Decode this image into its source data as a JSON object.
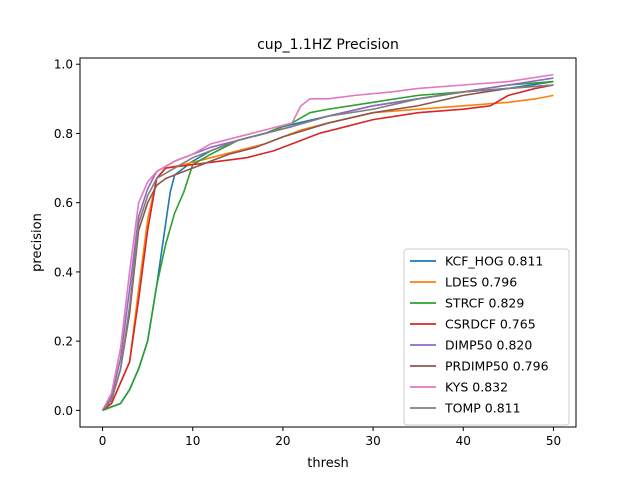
{
  "chart_data": {
    "type": "line",
    "title": "cup_1.1HZ Precision",
    "xlabel": "thresh",
    "ylabel": "precision",
    "xlim": [
      -2.5,
      52.5
    ],
    "ylim": [
      -0.048,
      1.018
    ],
    "x_ticks": [
      0,
      10,
      20,
      30,
      40,
      50
    ],
    "y_ticks": [
      0.0,
      0.2,
      0.4,
      0.6,
      0.8,
      1.0
    ],
    "x_tick_labels": [
      "0",
      "10",
      "20",
      "30",
      "40",
      "50"
    ],
    "y_tick_labels": [
      "0.0",
      "0.2",
      "0.4",
      "0.6",
      "0.8",
      "1.0"
    ],
    "grid": false,
    "legend_position": "lower-right",
    "series": [
      {
        "name": "KCF_HOG 0.811",
        "color": "#1f77b4",
        "points": [
          [
            0,
            0
          ],
          [
            1,
            0.01
          ],
          [
            2,
            0.02
          ],
          [
            3,
            0.06
          ],
          [
            4,
            0.12
          ],
          [
            5,
            0.2
          ],
          [
            6,
            0.36
          ],
          [
            6.5,
            0.45
          ],
          [
            7,
            0.54
          ],
          [
            7.5,
            0.63
          ],
          [
            8,
            0.68
          ],
          [
            9,
            0.7
          ],
          [
            10,
            0.72
          ],
          [
            12,
            0.75
          ],
          [
            15,
            0.78
          ],
          [
            18,
            0.8
          ],
          [
            20,
            0.82
          ],
          [
            25,
            0.85
          ],
          [
            30,
            0.88
          ],
          [
            35,
            0.9
          ],
          [
            40,
            0.92
          ],
          [
            45,
            0.93
          ],
          [
            50,
            0.95
          ]
        ]
      },
      {
        "name": "LDES 0.796",
        "color": "#ff7f0e",
        "points": [
          [
            0,
            0
          ],
          [
            1,
            0.02
          ],
          [
            2,
            0.08
          ],
          [
            3,
            0.14
          ],
          [
            4,
            0.35
          ],
          [
            5,
            0.55
          ],
          [
            6,
            0.67
          ],
          [
            7,
            0.7
          ],
          [
            9,
            0.71
          ],
          [
            12,
            0.73
          ],
          [
            15,
            0.75
          ],
          [
            18,
            0.77
          ],
          [
            20,
            0.79
          ],
          [
            22,
            0.81
          ],
          [
            25,
            0.83
          ],
          [
            30,
            0.86
          ],
          [
            35,
            0.87
          ],
          [
            40,
            0.88
          ],
          [
            45,
            0.89
          ],
          [
            48,
            0.9
          ],
          [
            50,
            0.91
          ]
        ]
      },
      {
        "name": "STRCF 0.829",
        "color": "#2ca02c",
        "points": [
          [
            0,
            0
          ],
          [
            1,
            0.01
          ],
          [
            2,
            0.02
          ],
          [
            3,
            0.06
          ],
          [
            4,
            0.12
          ],
          [
            5,
            0.2
          ],
          [
            6,
            0.36
          ],
          [
            7,
            0.48
          ],
          [
            8,
            0.57
          ],
          [
            9,
            0.63
          ],
          [
            10,
            0.71
          ],
          [
            12,
            0.74
          ],
          [
            15,
            0.78
          ],
          [
            18,
            0.8
          ],
          [
            21,
            0.83
          ],
          [
            23,
            0.86
          ],
          [
            25,
            0.87
          ],
          [
            30,
            0.89
          ],
          [
            35,
            0.91
          ],
          [
            40,
            0.92
          ],
          [
            45,
            0.94
          ],
          [
            50,
            0.95
          ]
        ]
      },
      {
        "name": "CSRDCF 0.765",
        "color": "#d62728",
        "points": [
          [
            0,
            0
          ],
          [
            1,
            0.02
          ],
          [
            2,
            0.08
          ],
          [
            3,
            0.14
          ],
          [
            4,
            0.32
          ],
          [
            5,
            0.52
          ],
          [
            6,
            0.67
          ],
          [
            7,
            0.7
          ],
          [
            10,
            0.71
          ],
          [
            13,
            0.72
          ],
          [
            16,
            0.73
          ],
          [
            19,
            0.75
          ],
          [
            21,
            0.77
          ],
          [
            24,
            0.8
          ],
          [
            27,
            0.82
          ],
          [
            30,
            0.84
          ],
          [
            35,
            0.86
          ],
          [
            40,
            0.87
          ],
          [
            43,
            0.88
          ],
          [
            45,
            0.91
          ],
          [
            48,
            0.93
          ],
          [
            50,
            0.94
          ]
        ]
      },
      {
        "name": "DIMP50 0.820",
        "color": "#9467bd",
        "points": [
          [
            0,
            0
          ],
          [
            1,
            0.04
          ],
          [
            2,
            0.15
          ],
          [
            3,
            0.35
          ],
          [
            4,
            0.56
          ],
          [
            5,
            0.64
          ],
          [
            6,
            0.69
          ],
          [
            8,
            0.72
          ],
          [
            10,
            0.74
          ],
          [
            12,
            0.76
          ],
          [
            15,
            0.78
          ],
          [
            18,
            0.8
          ],
          [
            21,
            0.82
          ],
          [
            25,
            0.85
          ],
          [
            30,
            0.88
          ],
          [
            35,
            0.9
          ],
          [
            40,
            0.92
          ],
          [
            45,
            0.94
          ],
          [
            50,
            0.96
          ]
        ]
      },
      {
        "name": "PRDIMP50 0.796",
        "color": "#8c564b",
        "points": [
          [
            0,
            0
          ],
          [
            1,
            0.03
          ],
          [
            2,
            0.12
          ],
          [
            3,
            0.28
          ],
          [
            4,
            0.52
          ],
          [
            5,
            0.6
          ],
          [
            6,
            0.65
          ],
          [
            7,
            0.67
          ],
          [
            9,
            0.69
          ],
          [
            11,
            0.71
          ],
          [
            14,
            0.74
          ],
          [
            17,
            0.76
          ],
          [
            20,
            0.79
          ],
          [
            25,
            0.83
          ],
          [
            30,
            0.86
          ],
          [
            35,
            0.88
          ],
          [
            40,
            0.91
          ],
          [
            45,
            0.93
          ],
          [
            50,
            0.94
          ]
        ]
      },
      {
        "name": "KYS 0.832",
        "color": "#e377c2",
        "points": [
          [
            0,
            0
          ],
          [
            1,
            0.05
          ],
          [
            2,
            0.18
          ],
          [
            3,
            0.4
          ],
          [
            4,
            0.6
          ],
          [
            5,
            0.66
          ],
          [
            6,
            0.69
          ],
          [
            8,
            0.72
          ],
          [
            10,
            0.74
          ],
          [
            12,
            0.77
          ],
          [
            15,
            0.79
          ],
          [
            18,
            0.81
          ],
          [
            21,
            0.83
          ],
          [
            22,
            0.88
          ],
          [
            23,
            0.9
          ],
          [
            25,
            0.9
          ],
          [
            28,
            0.91
          ],
          [
            32,
            0.92
          ],
          [
            35,
            0.93
          ],
          [
            40,
            0.94
          ],
          [
            45,
            0.95
          ],
          [
            50,
            0.97
          ]
        ]
      },
      {
        "name": "TOMP 0.811",
        "color": "#7f7f7f",
        "points": [
          [
            0,
            0
          ],
          [
            1,
            0.03
          ],
          [
            2,
            0.12
          ],
          [
            3,
            0.3
          ],
          [
            4,
            0.54
          ],
          [
            5,
            0.62
          ],
          [
            6,
            0.67
          ],
          [
            8,
            0.7
          ],
          [
            10,
            0.73
          ],
          [
            12,
            0.75
          ],
          [
            15,
            0.78
          ],
          [
            18,
            0.8
          ],
          [
            21,
            0.82
          ],
          [
            25,
            0.85
          ],
          [
            30,
            0.87
          ],
          [
            35,
            0.9
          ],
          [
            40,
            0.92
          ],
          [
            45,
            0.93
          ],
          [
            50,
            0.94
          ]
        ]
      }
    ]
  }
}
